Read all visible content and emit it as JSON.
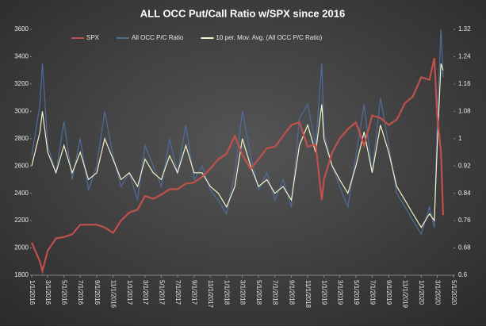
{
  "chart_data": {
    "type": "line",
    "title": "ALL OCC Put/Call Ratio w/SPX since 2016",
    "x": [
      "1/1/2016",
      "2/1/2016",
      "2/10/2016",
      "3/1/2016",
      "4/1/2016",
      "5/1/2016",
      "6/1/2016",
      "7/1/2016",
      "8/1/2016",
      "9/1/2016",
      "10/1/2016",
      "11/1/2016",
      "12/1/2016",
      "1/1/2017",
      "2/1/2017",
      "3/1/2017",
      "4/1/2017",
      "5/1/2017",
      "6/1/2017",
      "7/1/2017",
      "8/1/2017",
      "9/1/2017",
      "10/1/2017",
      "11/1/2017",
      "12/1/2017",
      "1/1/2018",
      "2/1/2018",
      "3/1/2018",
      "4/1/2018",
      "5/1/2018",
      "6/1/2018",
      "7/1/2018",
      "8/1/2018",
      "9/1/2018",
      "10/1/2018",
      "11/1/2018",
      "12/1/2018",
      "12/24/2018",
      "1/1/2019",
      "2/1/2019",
      "3/1/2019",
      "4/1/2019",
      "5/1/2019",
      "6/1/2019",
      "7/1/2019",
      "8/1/2019",
      "9/1/2019",
      "10/1/2019",
      "11/1/2019",
      "12/1/2019",
      "1/1/2020",
      "2/1/2020",
      "2/19/2020",
      "3/1/2020",
      "3/15/2020",
      "3/23/2020"
    ],
    "series": [
      {
        "name": "SPX",
        "color": "#c0504d",
        "values": [
          2040,
          1900,
          1830,
          1980,
          2070,
          2080,
          2100,
          2170,
          2170,
          2170,
          2150,
          2110,
          2200,
          2260,
          2280,
          2380,
          2360,
          2390,
          2430,
          2430,
          2470,
          2480,
          2520,
          2580,
          2650,
          2690,
          2820,
          2680,
          2580,
          2650,
          2730,
          2740,
          2820,
          2900,
          2920,
          2740,
          2760,
          2350,
          2500,
          2700,
          2800,
          2870,
          2920,
          2750,
          2970,
          2950,
          2900,
          2940,
          3060,
          3110,
          3250,
          3230,
          3390,
          2970,
          2700,
          2240
        ]
      },
      {
        "name": "All OCC P/C Ratio",
        "color": "#4f6d9a",
        "axis": "y2",
        "values": [
          0.95,
          1.1,
          1.22,
          0.98,
          0.9,
          1.05,
          0.88,
          1.0,
          0.85,
          0.92,
          1.08,
          0.95,
          0.86,
          0.9,
          0.82,
          0.98,
          0.92,
          0.86,
          1.0,
          0.9,
          1.04,
          0.88,
          0.92,
          0.85,
          0.82,
          0.78,
          0.9,
          1.08,
          0.95,
          0.85,
          0.9,
          0.82,
          0.88,
          0.8,
          1.06,
          1.1,
          0.98,
          1.22,
          1.02,
          0.92,
          0.86,
          0.8,
          0.95,
          1.1,
          0.9,
          1.12,
          0.98,
          0.84,
          0.8,
          0.76,
          0.72,
          0.8,
          0.74,
          1.05,
          1.32,
          1.18
        ]
      },
      {
        "name": "10 per. Mov. Avg. (All OCC P/C Ratio)",
        "color": "#f2f2c8",
        "axis": "y2",
        "values": [
          0.92,
          1.02,
          1.08,
          0.96,
          0.9,
          0.98,
          0.9,
          0.96,
          0.88,
          0.9,
          1.0,
          0.94,
          0.88,
          0.9,
          0.86,
          0.94,
          0.9,
          0.88,
          0.95,
          0.9,
          0.98,
          0.9,
          0.9,
          0.86,
          0.84,
          0.8,
          0.86,
          1.0,
          0.92,
          0.86,
          0.88,
          0.84,
          0.86,
          0.82,
          0.98,
          1.04,
          0.96,
          1.1,
          1.0,
          0.92,
          0.88,
          0.84,
          0.92,
          1.02,
          0.9,
          1.04,
          0.96,
          0.86,
          0.82,
          0.78,
          0.74,
          0.78,
          0.76,
          0.98,
          1.22,
          1.2
        ]
      }
    ],
    "xlim": [
      "1/1/2016",
      "5/1/2020"
    ],
    "xticks": [
      "1/1/2016",
      "3/1/2016",
      "5/1/2016",
      "7/1/2016",
      "9/1/2016",
      "11/1/2016",
      "1/1/2017",
      "3/1/2017",
      "5/1/2017",
      "7/1/2017",
      "9/1/2017",
      "11/1/2017",
      "1/1/2018",
      "3/1/2018",
      "5/1/2018",
      "7/1/2018",
      "9/1/2018",
      "11/1/2018",
      "1/1/2019",
      "3/1/2019",
      "5/1/2019",
      "7/1/2019",
      "9/1/2019",
      "11/1/2019",
      "1/1/2020",
      "3/1/2020",
      "5/1/2020"
    ],
    "ylim": [
      1800,
      3600
    ],
    "yticks": [
      1800,
      2000,
      2200,
      2400,
      2600,
      2800,
      3000,
      3200,
      3400,
      3600
    ],
    "y2lim": [
      0.6,
      1.32
    ],
    "y2ticks": [
      0.6,
      0.68,
      0.76,
      0.84,
      0.92,
      1,
      1.08,
      1.16,
      1.24,
      1.32
    ]
  }
}
